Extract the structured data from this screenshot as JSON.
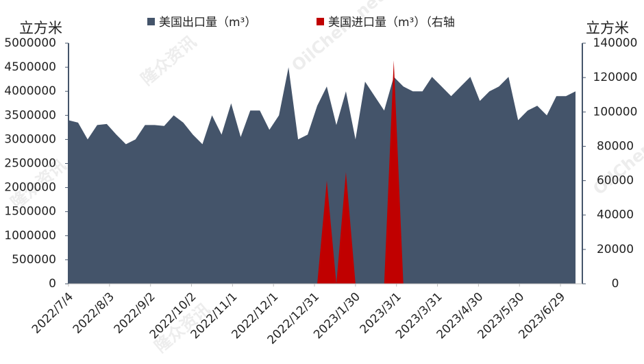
{
  "chart_data": {
    "type": "area",
    "y_unit": "立方米",
    "y2_unit": "立方米",
    "x": [
      "2022/7/4",
      "2022/7/11",
      "2022/7/18",
      "2022/7/25",
      "2022/8/1",
      "2022/8/8",
      "2022/8/15",
      "2022/8/22",
      "2022/8/29",
      "2022/9/5",
      "2022/9/12",
      "2022/9/19",
      "2022/9/26",
      "2022/10/3",
      "2022/10/10",
      "2022/10/17",
      "2022/10/24",
      "2022/10/31",
      "2022/11/7",
      "2022/11/14",
      "2022/11/21",
      "2022/11/28",
      "2022/12/5",
      "2022/12/12",
      "2022/12/19",
      "2022/12/26",
      "2023/1/2",
      "2023/1/9",
      "2023/1/16",
      "2023/1/23",
      "2023/1/30",
      "2023/2/6",
      "2023/2/13",
      "2023/2/20",
      "2023/2/27",
      "2023/3/6",
      "2023/3/13",
      "2023/3/20",
      "2023/3/27",
      "2023/4/3",
      "2023/4/10",
      "2023/4/17",
      "2023/4/24",
      "2023/5/1",
      "2023/5/8",
      "2023/5/15",
      "2023/5/22",
      "2023/5/29",
      "2023/6/5",
      "2023/6/12",
      "2023/6/19",
      "2023/6/26",
      "2023/7/3",
      "2023/7/10"
    ],
    "series": [
      {
        "name": "美国出口量（m³）",
        "color": "#44546a",
        "values": [
          3400000,
          3350000,
          3000000,
          3300000,
          3320000,
          3100000,
          2900000,
          3000000,
          3300000,
          3300000,
          3280000,
          3500000,
          3350000,
          3100000,
          2900000,
          3500000,
          3100000,
          3750000,
          3050000,
          3600000,
          3600000,
          3200000,
          3500000,
          4500000,
          3000000,
          3100000,
          3700000,
          4100000,
          3300000,
          4000000,
          3000000,
          4200000,
          3900000,
          3600000,
          4300000,
          4100000,
          4000000,
          4000000,
          4300000,
          4100000,
          3900000,
          4100000,
          4300000,
          3800000,
          4000000,
          4100000,
          4300000,
          3400000,
          3600000,
          3700000,
          3500000,
          3900000,
          3900000,
          4000000
        ]
      },
      {
        "name": "美国进口量（m³）（右轴",
        "color": "#c00000",
        "axis": "y2",
        "values": [
          0,
          0,
          0,
          0,
          0,
          0,
          0,
          0,
          0,
          0,
          0,
          0,
          0,
          0,
          0,
          0,
          0,
          0,
          0,
          0,
          0,
          0,
          0,
          0,
          0,
          0,
          0,
          60000,
          0,
          65000,
          0,
          0,
          0,
          0,
          130000,
          0,
          0,
          0,
          0,
          0,
          0,
          0,
          0,
          0,
          0,
          0,
          0,
          0,
          0,
          0,
          0,
          0,
          0,
          0
        ]
      }
    ],
    "xlim": [
      "2022/7/4",
      "2023/7/15"
    ],
    "xticks": [
      "2022/7/4",
      "2022/8/3",
      "2022/9/2",
      "2022/10/2",
      "2022/11/1",
      "2022/12/1",
      "2022/12/31",
      "2023/1/30",
      "2023/3/1",
      "2023/3/31",
      "2023/4/30",
      "2023/5/30",
      "2023/6/29"
    ],
    "ylim": [
      0,
      5000000
    ],
    "yticks": [
      0,
      500000,
      1000000,
      1500000,
      2000000,
      2500000,
      3000000,
      3500000,
      4000000,
      4500000,
      5000000
    ],
    "y2lim": [
      0,
      140000
    ],
    "y2ticks": [
      0,
      20000,
      40000,
      60000,
      80000,
      100000,
      120000,
      140000
    ],
    "legend": "top",
    "watermarks": [
      "隆众资讯",
      "OilChem.net",
      "隆众资讯",
      "OilChem.net",
      "隆众资讯"
    ]
  }
}
